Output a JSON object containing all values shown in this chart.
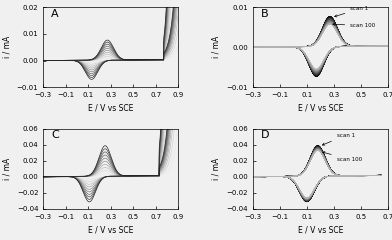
{
  "panel_A": {
    "label": "A",
    "xlim": [
      -0.3,
      0.9
    ],
    "ylim": [
      -0.01,
      0.02
    ],
    "yticks": [
      -0.01,
      0.0,
      0.01,
      0.02
    ],
    "xticks": [
      -0.3,
      -0.1,
      0.1,
      0.3,
      0.5,
      0.7,
      0.9
    ],
    "xlabel": "E / V vs SCE",
    "ylabel": "i / mA",
    "n_scans": 10
  },
  "panel_B": {
    "label": "B",
    "xlim": [
      -0.3,
      0.7
    ],
    "ylim": [
      -0.01,
      0.01
    ],
    "yticks": [
      -0.01,
      0.0,
      0.01
    ],
    "xticks": [
      -0.3,
      -0.1,
      0.1,
      0.3,
      0.5,
      0.7
    ],
    "xlabel": "E / V vs SCE",
    "ylabel": "i / mA",
    "n_scans": 100,
    "annotation1": "scan 1",
    "annotation2": "scan 100"
  },
  "panel_C": {
    "label": "C",
    "xlim": [
      -0.3,
      0.9
    ],
    "ylim": [
      -0.04,
      0.06
    ],
    "yticks": [
      -0.04,
      -0.02,
      0.0,
      0.02,
      0.04,
      0.06
    ],
    "xticks": [
      -0.3,
      -0.1,
      0.1,
      0.3,
      0.5,
      0.7,
      0.9
    ],
    "xlabel": "E / V vs SCE",
    "ylabel": "i / mA",
    "n_scans": 10
  },
  "panel_D": {
    "label": "D",
    "xlim": [
      -0.3,
      0.7
    ],
    "ylim": [
      -0.04,
      0.06
    ],
    "yticks": [
      -0.04,
      -0.02,
      0.0,
      0.02,
      0.04,
      0.06
    ],
    "xticks": [
      -0.3,
      -0.1,
      0.1,
      0.3,
      0.5,
      0.7
    ],
    "xlabel": "E / V vs SCE",
    "ylabel": "i / mA",
    "n_scans": 100,
    "annotation1": "scan 1",
    "annotation2": "scan 100"
  },
  "background_color": "#f0f0f0",
  "fontsize_label": 5.5,
  "fontsize_tick": 5,
  "fontsize_panel": 8
}
